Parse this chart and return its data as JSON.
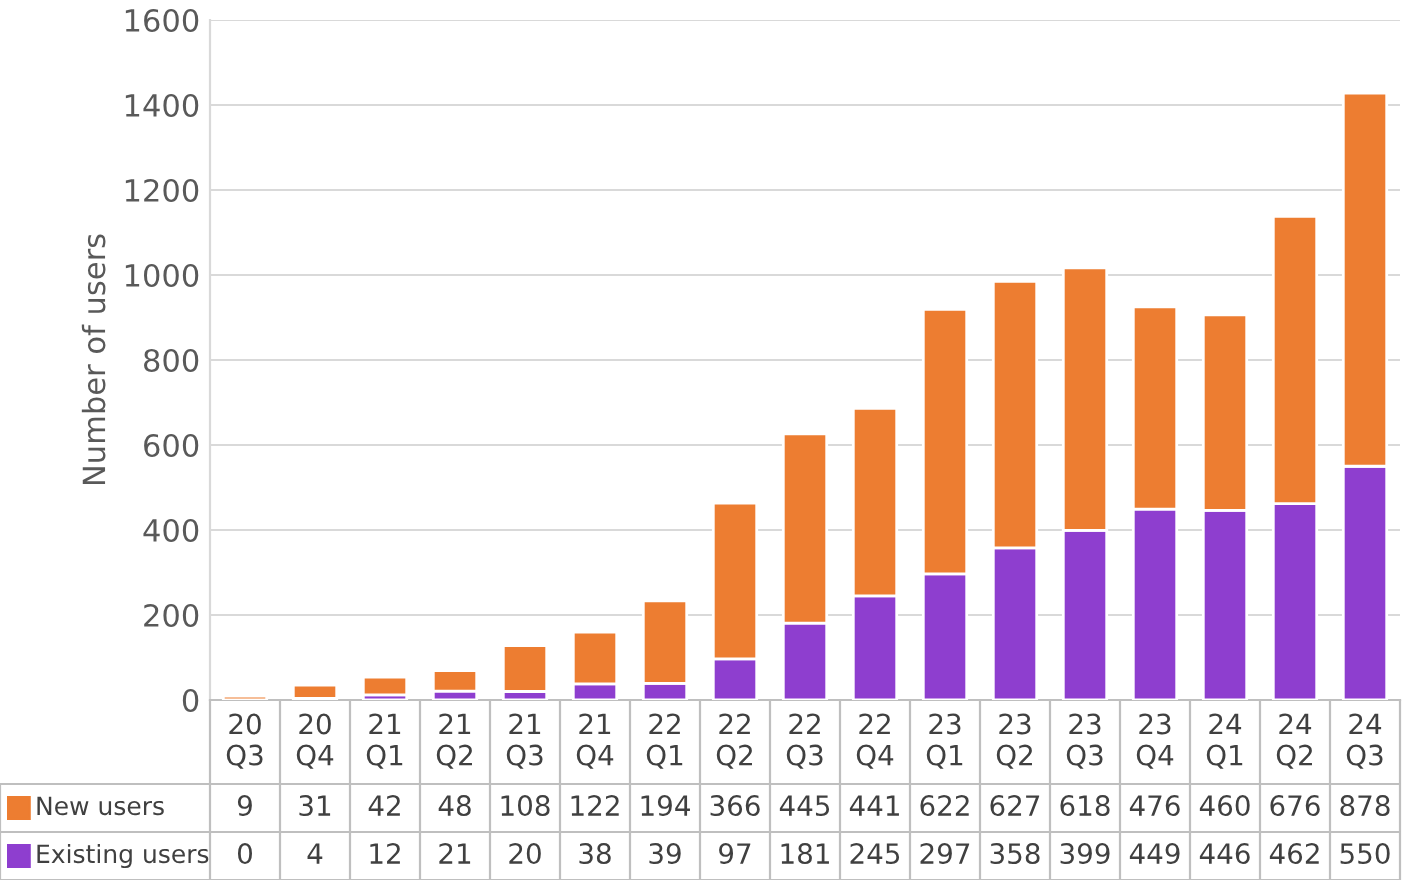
{
  "chart_data": {
    "type": "bar",
    "ylabel": "Number of users",
    "stacked": true,
    "categories": [
      "20\nQ3",
      "20\nQ4",
      "21\nQ1",
      "21\nQ2",
      "21\nQ3",
      "21\nQ4",
      "22\nQ1",
      "22\nQ2",
      "22\nQ3",
      "22\nQ4",
      "23\nQ1",
      "23\nQ2",
      "23\nQ3",
      "23\nQ4",
      "24\nQ1",
      "24\nQ2",
      "24\nQ3"
    ],
    "series": [
      {
        "name": "Existing users",
        "color": "#8e3ecf",
        "values": [
          0,
          4,
          12,
          21,
          20,
          38,
          39,
          97,
          181,
          245,
          297,
          358,
          399,
          449,
          446,
          462,
          550
        ]
      },
      {
        "name": "New users",
        "color": "#ed7d31",
        "values": [
          9,
          31,
          42,
          48,
          108,
          122,
          194,
          366,
          445,
          441,
          622,
          627,
          618,
          476,
          460,
          676,
          878
        ]
      }
    ],
    "ylim": [
      0,
      1600
    ],
    "yticks": [
      0,
      200,
      400,
      600,
      800,
      1000,
      1200,
      1400,
      1600
    ],
    "grid": "y",
    "legend": "bottom",
    "data_labels": true
  }
}
